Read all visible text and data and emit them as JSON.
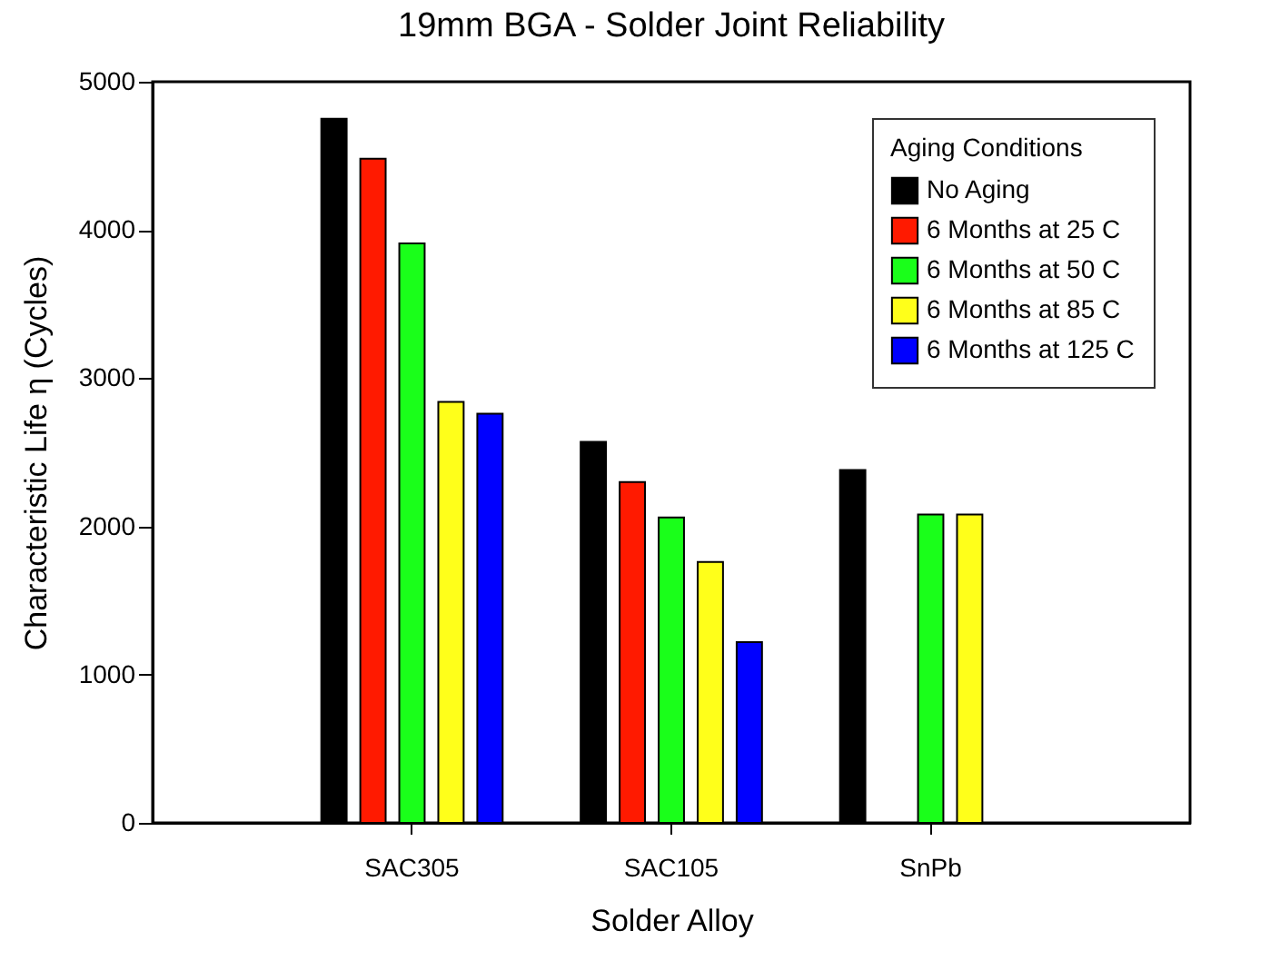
{
  "chart_data": {
    "type": "bar",
    "title": "19mm BGA - Solder Joint Reliability",
    "xlabel": "Solder Alloy",
    "ylabel": "Characteristic Life η (Cycles)",
    "legend_title": "Aging Conditions",
    "categories": [
      "SAC305",
      "SAC105",
      "SnPb"
    ],
    "series": [
      {
        "name": "No Aging",
        "color": "#000000",
        "values": [
          4750,
          2570,
          2380
        ]
      },
      {
        "name": "6 Months at 25 C",
        "color": "#ff1a00",
        "values": [
          4480,
          2300,
          null
        ]
      },
      {
        "name": "6 Months at 50 C",
        "color": "#1aff1a",
        "values": [
          3910,
          2060,
          2080
        ]
      },
      {
        "name": "6 Months at 85 C",
        "color": "#ffff1a",
        "values": [
          2840,
          1760,
          2080
        ]
      },
      {
        "name": "6 Months at 125 C",
        "color": "#0000ff",
        "values": [
          2760,
          1220,
          null
        ]
      }
    ],
    "ylim": [
      0,
      5000
    ],
    "yticks": [
      0,
      1000,
      2000,
      3000,
      4000,
      5000
    ],
    "legend": "top right"
  }
}
